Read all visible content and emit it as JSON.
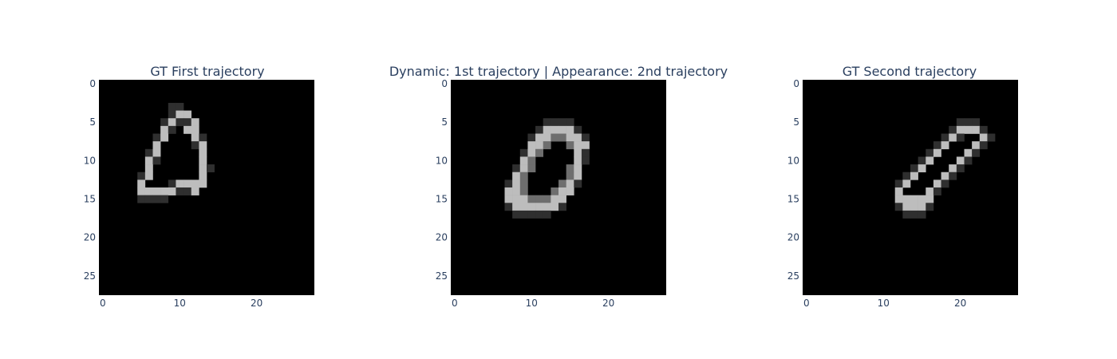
{
  "chart_data": [
    {
      "type": "heatmap",
      "title": "GT First trajectory",
      "colorscale": "gray",
      "x_ticks": [
        0,
        10,
        20
      ],
      "y_ticks": [
        0,
        5,
        10,
        15,
        20,
        25
      ],
      "xlim": [
        -0.5,
        27.5
      ],
      "ylim": [
        27.5,
        -0.5
      ],
      "shape": [
        28,
        28
      ],
      "rows": [
        "............................",
        "............................",
        "............................",
        ".........ll.................",
        ".........lhh................",
        "........lhllh...............",
        "........hl.hh...............",
        ".......lh...hl..............",
        ".......h....lh..............",
        "......lh.....h..............",
        "......hl.....h..............",
        "......h......hl.............",
        ".....lh......h..............",
        ".....h...lhhhh..............",
        ".....hhhhhllh...............",
        ".....llll...................",
        "............................",
        "............................",
        "............................",
        "............................",
        "............................",
        "............................",
        "............................",
        "............................",
        "............................",
        "............................",
        "............................",
        "............................"
      ]
    },
    {
      "type": "heatmap",
      "title": "Dynamic: 1st trajectory | Appearance: 2nd trajectory",
      "colorscale": "gray",
      "x_ticks": [
        0,
        10,
        20
      ],
      "y_ticks": [
        0,
        5,
        10,
        15,
        20,
        25
      ],
      "xlim": [
        -0.5,
        27.5
      ],
      "ylim": [
        27.5,
        -0.5
      ],
      "shape": [
        28,
        28
      ],
      "rows": [
        "............................",
        "............................",
        "............................",
        "............................",
        "............................",
        "............llll............",
        "...........lhhhhl...........",
        "..........lhhmmhhl..........",
        "..........hhm..mhh..........",
        ".........lhm....hl..........",
        ".........hm.....hl..........",
        "........lhm....mh...........",
        "........hm.....mh...........",
        ".......lhm....mhl...........",
        ".......hhm...mhh............",
        ".......hhhmmmhh.............",
        ".......lhhhhhhl.............",
        "........lllll...............",
        "............................",
        "............................",
        "............................",
        "............................",
        "............................",
        "............................",
        "............................",
        "............................",
        "............................",
        "............................"
      ]
    },
    {
      "type": "heatmap",
      "title": "GT Second trajectory",
      "colorscale": "gray",
      "x_ticks": [
        0,
        10,
        20
      ],
      "y_ticks": [
        0,
        5,
        10,
        15,
        20,
        25
      ],
      "xlim": [
        -0.5,
        27.5
      ],
      "ylim": [
        27.5,
        -0.5
      ],
      "shape": [
        28,
        28
      ],
      "rows": [
        "............................",
        "............................",
        "............................",
        "............................",
        "............................",
        "....................lll.....",
        "...................lhhhl....",
        "..................lhl..hl...",
        ".................lh...hl....",
        "................lh...hl.....",
        "...............lh...hl......",
        "..............lh...hl.......",
        ".............lh...hl........",
        "............lh...hl.........",
        "............h...hl..........",
        "............hhhhh...........",
        "............lhhhl...........",
        ".............lll............",
        "............................",
        "............................",
        "............................",
        "............................",
        "............................",
        "............................",
        "............................",
        "............................",
        "............................",
        "............................"
      ]
    }
  ]
}
